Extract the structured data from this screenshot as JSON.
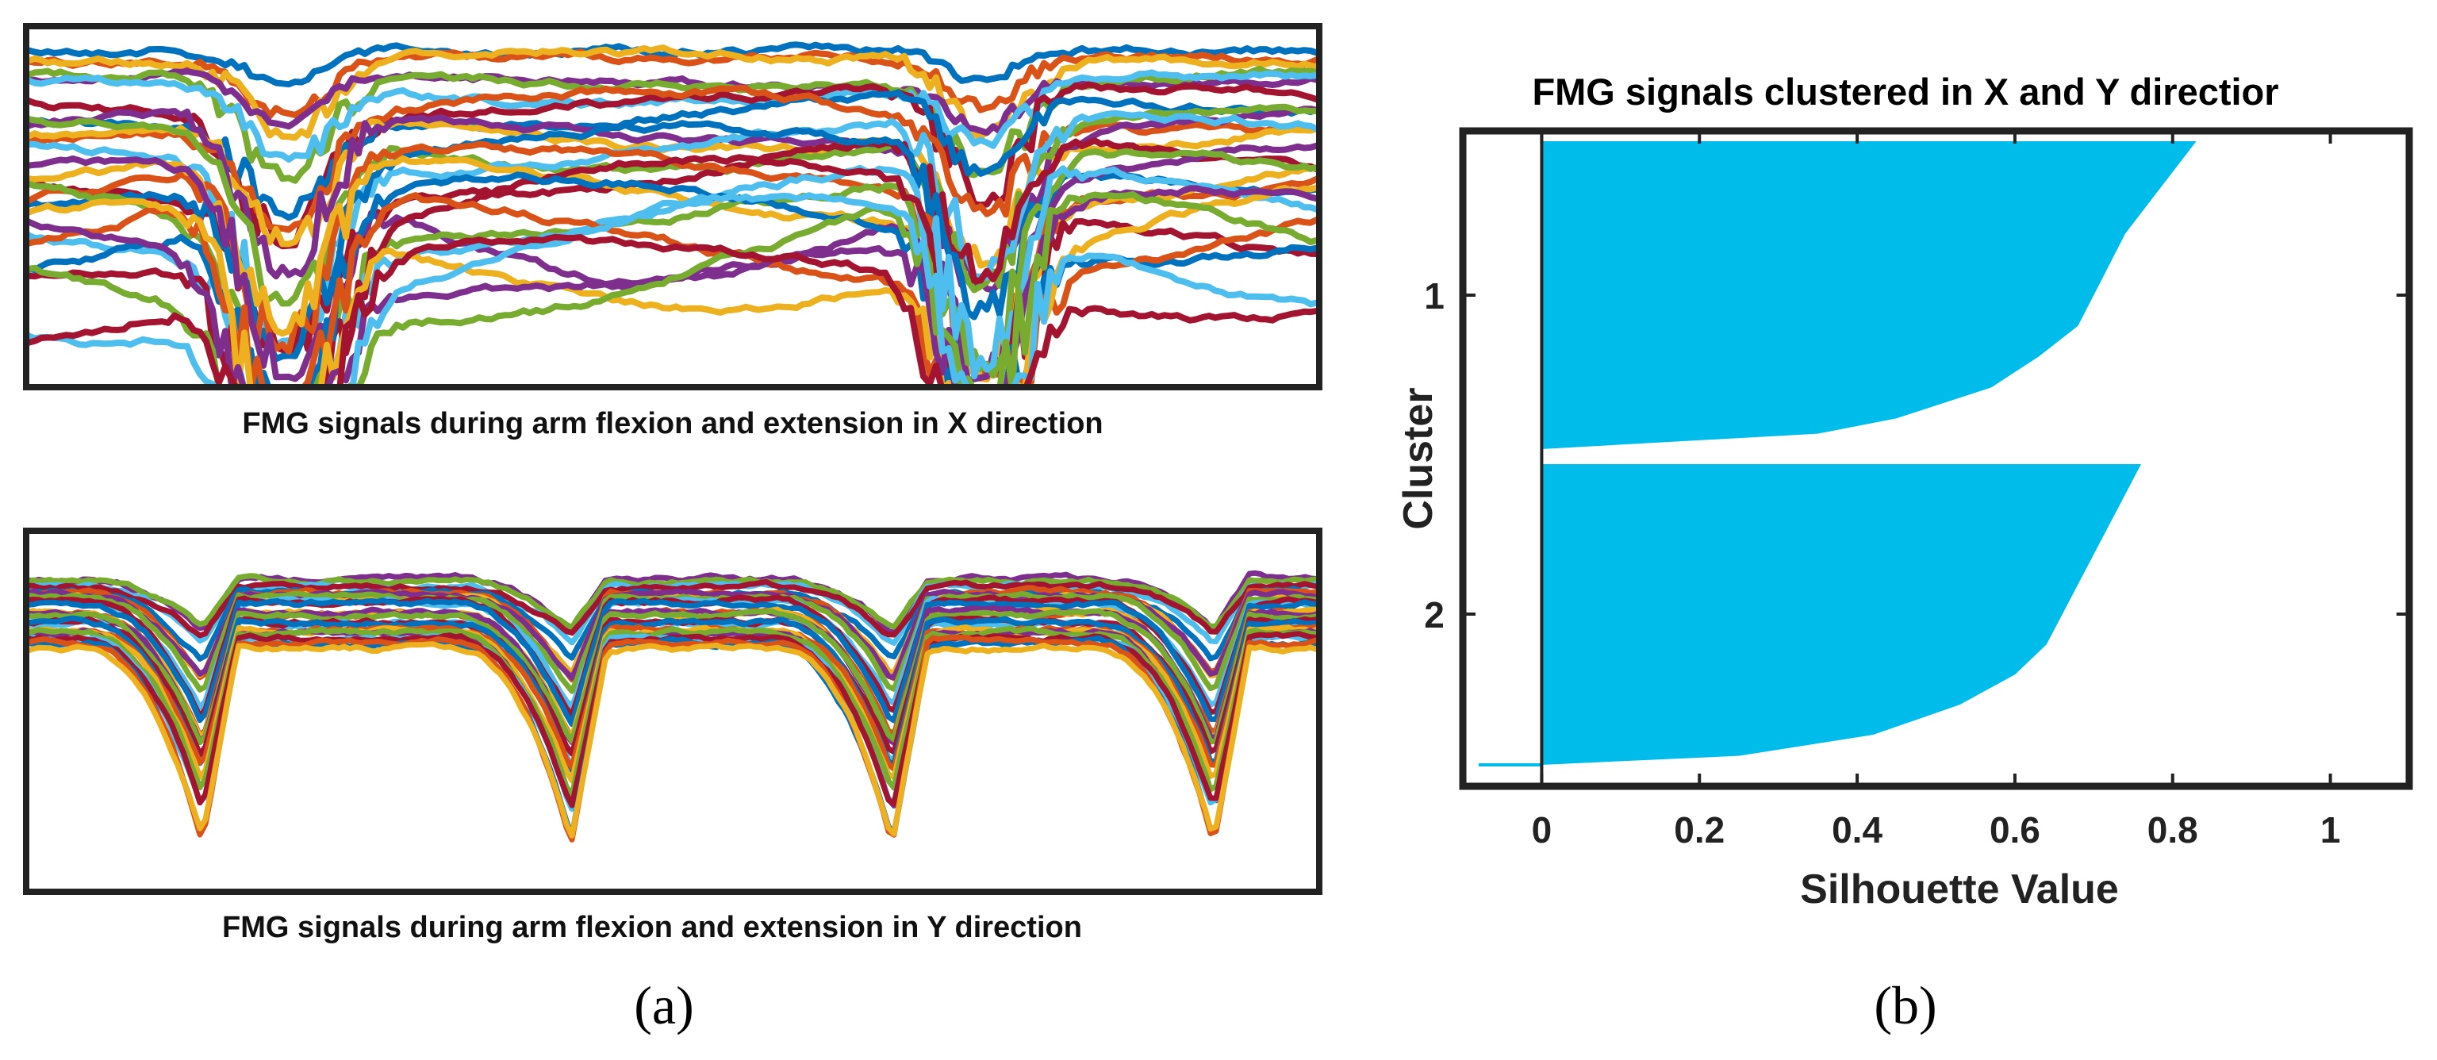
{
  "panel_a": {
    "label": "(a)",
    "top_caption": "FMG signals during arm flexion and extension in X direction",
    "bottom_caption": "FMG signals during arm flexion and extension in Y direction"
  },
  "panel_b": {
    "label": "(b)"
  },
  "palette": [
    "#0072BD",
    "#D95319",
    "#EDB120",
    "#7E2F8E",
    "#77AC30",
    "#4DBEEE",
    "#A2142F"
  ],
  "chart_data": [
    {
      "type": "line",
      "title": "FMG signals during arm flexion and extension in X direction",
      "xlabel": "",
      "ylabel": "",
      "series_count": 28,
      "colors": "MATLAB default line colors",
      "note": "Many overlapping FMG channel traces; unlabeled axes"
    },
    {
      "type": "line",
      "title": "FMG signals during arm flexion and extension in Y direction",
      "xlabel": "",
      "ylabel": "",
      "series_count": 28,
      "cycles": 4,
      "note": "Periodic flexion/extension pattern with four dips"
    },
    {
      "type": "area",
      "title": "FMG signals clustered in X and Y directior",
      "xlabel": "Silhouette Value",
      "ylabel": "Cluster",
      "xlim": [
        -0.1,
        1.1
      ],
      "x_ticks": [
        "0",
        "0.2",
        "0.4",
        "0.6",
        "0.8",
        "1"
      ],
      "x_tick_values": [
        0,
        0.2,
        0.4,
        0.6,
        0.8,
        1
      ],
      "y_ticks": [
        "1",
        "2"
      ],
      "color": "#00BCEB",
      "clusters": [
        {
          "name": "1",
          "max_silhouette": 0.83,
          "profile": [
            [
              0,
              0.83
            ],
            [
              0.1,
              0.8
            ],
            [
              0.2,
              0.77
            ],
            [
              0.3,
              0.74
            ],
            [
              0.4,
              0.72
            ],
            [
              0.5,
              0.7
            ],
            [
              0.6,
              0.68
            ],
            [
              0.7,
              0.63
            ],
            [
              0.8,
              0.57
            ],
            [
              0.9,
              0.45
            ],
            [
              0.95,
              0.35
            ],
            [
              1,
              0.0
            ]
          ]
        },
        {
          "name": "2",
          "max_silhouette": 0.76,
          "profile": [
            [
              0,
              0.76
            ],
            [
              0.1,
              0.74
            ],
            [
              0.2,
              0.72
            ],
            [
              0.3,
              0.7
            ],
            [
              0.4,
              0.68
            ],
            [
              0.5,
              0.66
            ],
            [
              0.6,
              0.64
            ],
            [
              0.7,
              0.6
            ],
            [
              0.8,
              0.53
            ],
            [
              0.9,
              0.42
            ],
            [
              0.97,
              0.25
            ],
            [
              1,
              0.0
            ]
          ]
        }
      ],
      "negative_tail": -0.08
    }
  ]
}
